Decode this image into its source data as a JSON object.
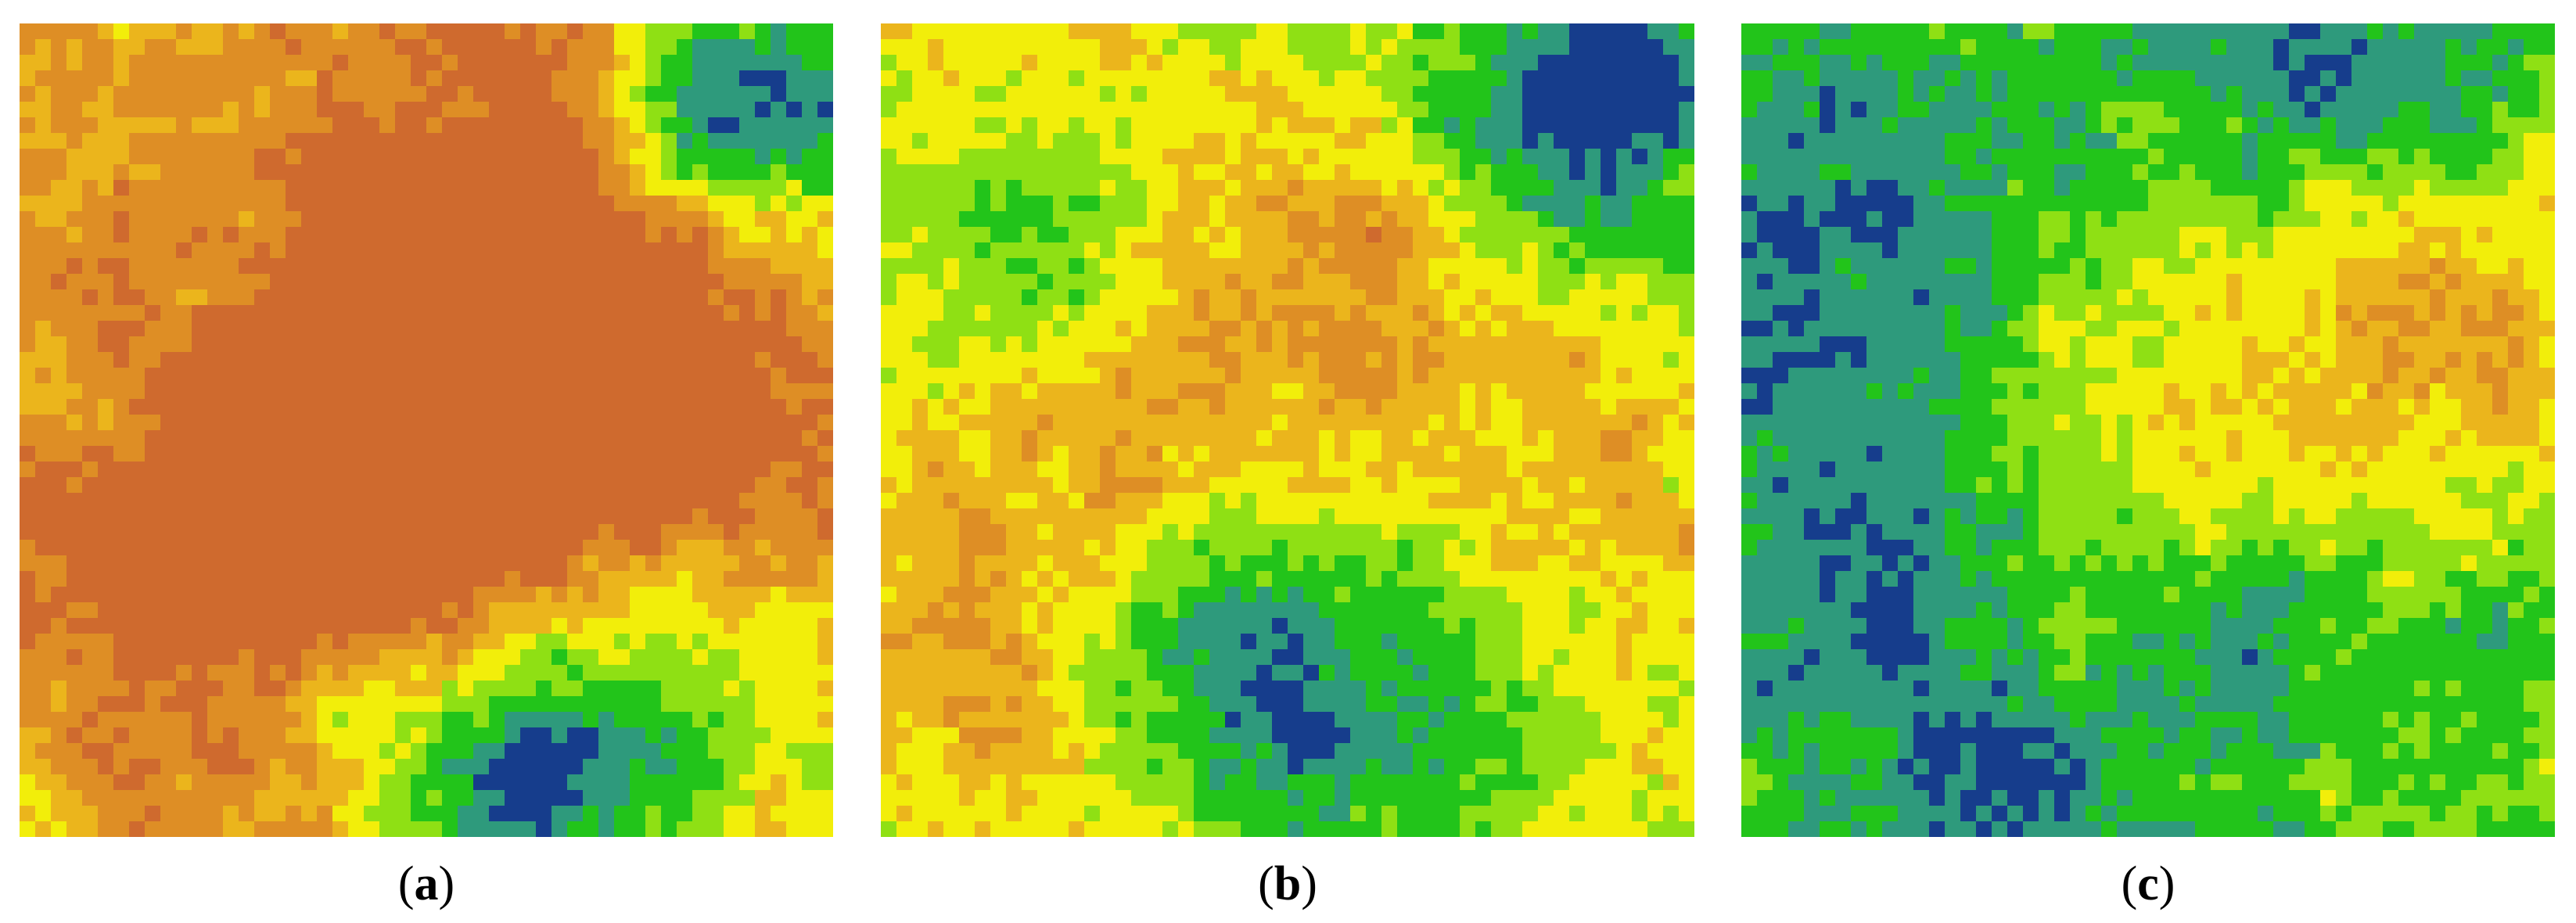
{
  "palette": {
    "deep_blue": "#163d8c",
    "teal": "#2e9a7c",
    "green": "#22c41a",
    "light_green": "#8fe014",
    "yellow": "#f2ee0a",
    "gold": "#ebb51c",
    "orange": "#de8e25",
    "rust": "#cf6a2e"
  },
  "panels": [
    {
      "id": "a",
      "caption": {
        "open": "(",
        "letter": "a",
        "close": ")"
      },
      "hotspots": [
        [
          0.55,
          0.4,
          0.3,
          0.95
        ],
        [
          0.45,
          0.6,
          0.2,
          0.9
        ],
        [
          0.12,
          0.55,
          0.25,
          0.7
        ],
        [
          0.7,
          0.25,
          0.18,
          0.8
        ],
        [
          0.22,
          0.28,
          0.13,
          -0.6
        ],
        [
          0.1,
          0.48,
          0.06,
          -0.7
        ],
        [
          0.95,
          0.1,
          0.12,
          -2.2
        ],
        [
          0.8,
          0.12,
          0.08,
          -1.4
        ],
        [
          0.72,
          0.88,
          0.18,
          -1.6
        ],
        [
          0.58,
          0.92,
          0.1,
          -1.2
        ],
        [
          0.38,
          0.83,
          0.05,
          -0.8
        ],
        [
          0.85,
          0.55,
          0.1,
          0.5
        ]
      ],
      "base": 0.55,
      "noise": 0.45
    },
    {
      "id": "b",
      "caption": {
        "open": "(",
        "letter": "b",
        "close": ")"
      },
      "hotspots": [
        [
          0.4,
          0.45,
          0.18,
          0.55
        ],
        [
          0.6,
          0.3,
          0.15,
          0.45
        ],
        [
          0.85,
          0.55,
          0.14,
          0.6
        ],
        [
          0.2,
          0.65,
          0.16,
          0.45
        ],
        [
          0.12,
          0.85,
          0.12,
          0.5
        ],
        [
          0.2,
          0.27,
          0.1,
          -1.0
        ],
        [
          0.75,
          0.1,
          0.12,
          -1.1
        ],
        [
          0.92,
          0.05,
          0.07,
          -1.6
        ],
        [
          0.9,
          0.2,
          0.12,
          -0.9
        ],
        [
          0.55,
          0.82,
          0.2,
          -1.2
        ],
        [
          0.4,
          0.78,
          0.1,
          -0.6
        ],
        [
          0.62,
          0.2,
          0.09,
          0.3
        ]
      ],
      "base": 0.1,
      "noise": 0.45
    },
    {
      "id": "c",
      "caption": {
        "open": "(",
        "letter": "c",
        "close": ")"
      },
      "hotspots": [
        [
          0.45,
          0.45,
          0.22,
          0.85
        ],
        [
          0.9,
          0.38,
          0.16,
          1.1
        ],
        [
          0.42,
          0.88,
          0.08,
          0.6
        ],
        [
          0.15,
          0.25,
          0.2,
          -1.1
        ],
        [
          0.15,
          0.7,
          0.2,
          -1.0
        ],
        [
          0.8,
          0.05,
          0.12,
          -1.2
        ],
        [
          0.6,
          0.78,
          0.12,
          -0.8
        ],
        [
          0.35,
          0.95,
          0.1,
          -1.1
        ],
        [
          0.9,
          0.75,
          0.1,
          -0.5
        ],
        [
          0.55,
          0.1,
          0.12,
          -0.4
        ]
      ],
      "base": -0.45,
      "noise": 0.45
    }
  ]
}
